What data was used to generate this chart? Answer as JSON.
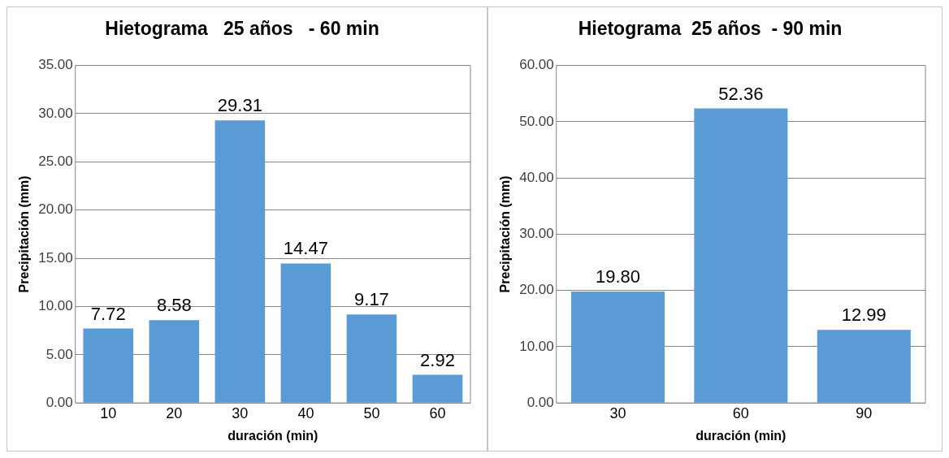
{
  "chart_data": [
    {
      "type": "bar",
      "title": "Hietograma   25 años   - 60 min",
      "xlabel": "duración (min)",
      "ylabel": "Precipitación (mm)",
      "categories": [
        "10",
        "20",
        "30",
        "40",
        "50",
        "60"
      ],
      "values": [
        7.72,
        8.58,
        29.31,
        14.47,
        9.17,
        2.92
      ],
      "value_labels": [
        "7.72",
        "8.58",
        "29.31",
        "14.47",
        "9.17",
        "2.92"
      ],
      "color": "#5b9bd5",
      "ylim": [
        0,
        35
      ],
      "yticks": [
        {
          "value": 0,
          "label": "0.00"
        },
        {
          "value": 5,
          "label": "5.00"
        },
        {
          "value": 10,
          "label": "10.00"
        },
        {
          "value": 15,
          "label": "15.00"
        },
        {
          "value": 20,
          "label": "20.00"
        },
        {
          "value": 25,
          "label": "25.00"
        },
        {
          "value": 30,
          "label": "30.00"
        },
        {
          "value": 35,
          "label": "35.00"
        }
      ],
      "grid": "y",
      "legend": false
    },
    {
      "type": "bar",
      "title": "Hietograma  25 años  - 90 min",
      "xlabel": "duración (min)",
      "ylabel": "Precipitación (mm)",
      "categories": [
        "30",
        "60",
        "90"
      ],
      "values": [
        19.8,
        52.36,
        12.99
      ],
      "value_labels": [
        "19.80",
        "52.36",
        "12.99"
      ],
      "color": "#5b9bd5",
      "ylim": [
        0,
        60
      ],
      "yticks": [
        {
          "value": 0,
          "label": "0.00"
        },
        {
          "value": 10,
          "label": "10.00"
        },
        {
          "value": 20,
          "label": "20.00"
        },
        {
          "value": 30,
          "label": "30.00"
        },
        {
          "value": 40,
          "label": "40.00"
        },
        {
          "value": 50,
          "label": "50.00"
        },
        {
          "value": 60,
          "label": "60.00"
        }
      ],
      "grid": "y",
      "legend": false
    }
  ]
}
